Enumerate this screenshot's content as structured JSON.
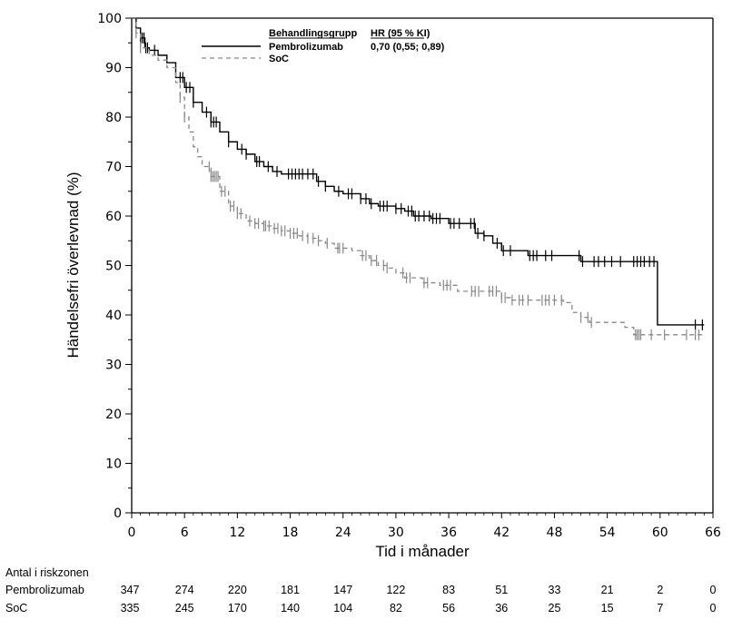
{
  "chart_data": {
    "type": "line",
    "subtype": "kaplan-meier",
    "title": "",
    "xlabel": "Tid i månader",
    "ylabel": "Händelsefri överlevnad (%)",
    "xlim": [
      0,
      66
    ],
    "ylim": [
      0,
      100
    ],
    "xticks": [
      0,
      6,
      12,
      18,
      24,
      30,
      36,
      42,
      48,
      54,
      60,
      66
    ],
    "yticks": [
      0,
      10,
      20,
      30,
      40,
      50,
      60,
      70,
      80,
      90,
      100
    ],
    "grid": false,
    "legend": {
      "placement": "top-center",
      "header_group": "Behandlingsgrupp",
      "header_hr": "HR (95 % KI)",
      "entries": [
        {
          "name": "Pembrolizumab",
          "hr": "0,70 (0,55; 0,89)",
          "style": "solid"
        },
        {
          "name": "SoC",
          "hr": "",
          "style": "dashed"
        }
      ]
    },
    "series": [
      {
        "name": "Pembrolizumab",
        "color": "#000000",
        "style": "solid",
        "points": [
          [
            0,
            100
          ],
          [
            0.5,
            98
          ],
          [
            1,
            96
          ],
          [
            1.5,
            94
          ],
          [
            2,
            93.5
          ],
          [
            3,
            92.5
          ],
          [
            4,
            91
          ],
          [
            5,
            88
          ],
          [
            6,
            86
          ],
          [
            7,
            83
          ],
          [
            8,
            81
          ],
          [
            9,
            79
          ],
          [
            10,
            77
          ],
          [
            11,
            75
          ],
          [
            12,
            73.5
          ],
          [
            13,
            72.5
          ],
          [
            14,
            71
          ],
          [
            15,
            70
          ],
          [
            16,
            69
          ],
          [
            17,
            68.5
          ],
          [
            21,
            67
          ],
          [
            22,
            66
          ],
          [
            23,
            65
          ],
          [
            24,
            64.5
          ],
          [
            26,
            63.5
          ],
          [
            27,
            62.5
          ],
          [
            28,
            62
          ],
          [
            30,
            61.5
          ],
          [
            31,
            61
          ],
          [
            32,
            60
          ],
          [
            34,
            59.5
          ],
          [
            36,
            58.5
          ],
          [
            39,
            56.5
          ],
          [
            40,
            56
          ],
          [
            41,
            54.5
          ],
          [
            42,
            53
          ],
          [
            45,
            52
          ],
          [
            51,
            50.8
          ],
          [
            59.7,
            38
          ],
          [
            65,
            38
          ]
        ],
        "censor": [
          1.0,
          1.2,
          1.4,
          1.6,
          1.8,
          2.6,
          5.5,
          5.8,
          6.2,
          6.6,
          7.0,
          8.5,
          9.0,
          9.3,
          9.6,
          11.0,
          12.5,
          13.0,
          14.2,
          14.5,
          15.5,
          16.5,
          17.8,
          18.2,
          18.6,
          19.0,
          19.4,
          20.0,
          20.6,
          21.2,
          22.0,
          23.5,
          24.6,
          25.0,
          26.0,
          26.6,
          27.2,
          28.2,
          28.6,
          29.0,
          30.0,
          30.6,
          31.4,
          31.8,
          32.2,
          32.6,
          33.2,
          33.8,
          34.2,
          34.6,
          35.0,
          36.2,
          36.6,
          37.2,
          38.5,
          38.9,
          39.3,
          40.0,
          41.5,
          42.2,
          43.0,
          45.2,
          45.6,
          46.0,
          47.0,
          47.7,
          50.8,
          51.2,
          52.5,
          53.0,
          53.7,
          54.5,
          55.5,
          57.0,
          57.4,
          57.8,
          58.2,
          58.8,
          59.3,
          64.0,
          64.8
        ]
      },
      {
        "name": "SoC",
        "color": "#888888",
        "style": "dashed",
        "points": [
          [
            0,
            100
          ],
          [
            0.5,
            97
          ],
          [
            1,
            94
          ],
          [
            2,
            92.5
          ],
          [
            3,
            91.5
          ],
          [
            4,
            90
          ],
          [
            5,
            87
          ],
          [
            5.5,
            84
          ],
          [
            6,
            80
          ],
          [
            6.5,
            77
          ],
          [
            7,
            74
          ],
          [
            7.5,
            72
          ],
          [
            8,
            70
          ],
          [
            9,
            68
          ],
          [
            10,
            65
          ],
          [
            11,
            62
          ],
          [
            12,
            60.5
          ],
          [
            13,
            59
          ],
          [
            14,
            58.5
          ],
          [
            15,
            58
          ],
          [
            16,
            57.5
          ],
          [
            17,
            57
          ],
          [
            18,
            56.5
          ],
          [
            19,
            56
          ],
          [
            20,
            55.5
          ],
          [
            21,
            55
          ],
          [
            22,
            54.5
          ],
          [
            23,
            53.5
          ],
          [
            25,
            53
          ],
          [
            26,
            52
          ],
          [
            27,
            51
          ],
          [
            28,
            50
          ],
          [
            29,
            49.5
          ],
          [
            30,
            48.5
          ],
          [
            31,
            47.5
          ],
          [
            33,
            46.5
          ],
          [
            35,
            46
          ],
          [
            37,
            44.8
          ],
          [
            42,
            43.5
          ],
          [
            43,
            43
          ],
          [
            49,
            42.5
          ],
          [
            50,
            40.5
          ],
          [
            51,
            39.5
          ],
          [
            52,
            38.5
          ],
          [
            56,
            37.5
          ],
          [
            57,
            36
          ],
          [
            65,
            36
          ]
        ],
        "censor": [
          0.5,
          1.0,
          5.5,
          6.0,
          8.8,
          9.0,
          9.2,
          9.4,
          9.6,
          9.8,
          10.2,
          10.6,
          11.2,
          11.6,
          12.0,
          12.4,
          13.4,
          14.0,
          14.4,
          15.0,
          15.2,
          15.6,
          16.2,
          16.6,
          17.0,
          17.4,
          18.0,
          18.4,
          18.8,
          19.4,
          20.0,
          20.6,
          21.2,
          22.2,
          23.4,
          23.6,
          24.0,
          26.2,
          26.6,
          27.2,
          27.8,
          28.6,
          29.0,
          30.8,
          31.2,
          31.6,
          33.2,
          33.6,
          35.4,
          35.8,
          36.2,
          38.6,
          39.0,
          39.4,
          40.6,
          41.0,
          41.4,
          42.0,
          42.4,
          43.2,
          44.0,
          44.4,
          45.0,
          46.6,
          47.0,
          47.4,
          48.0,
          48.8,
          51.0,
          51.8,
          52.2,
          57.2,
          57.4,
          57.6,
          57.8,
          59.0,
          60.5,
          63.0,
          64.0,
          64.4
        ]
      }
    ],
    "risk_table": {
      "title": "Antal i riskzonen",
      "times": [
        0,
        6,
        12,
        18,
        24,
        30,
        36,
        42,
        48,
        54,
        60,
        66
      ],
      "rows": [
        {
          "label": "Pembrolizumab",
          "values": [
            347,
            274,
            220,
            181,
            147,
            122,
            83,
            51,
            33,
            21,
            2,
            0
          ]
        },
        {
          "label": "SoC",
          "values": [
            335,
            245,
            170,
            140,
            104,
            82,
            56,
            36,
            25,
            15,
            7,
            0
          ]
        }
      ]
    }
  }
}
